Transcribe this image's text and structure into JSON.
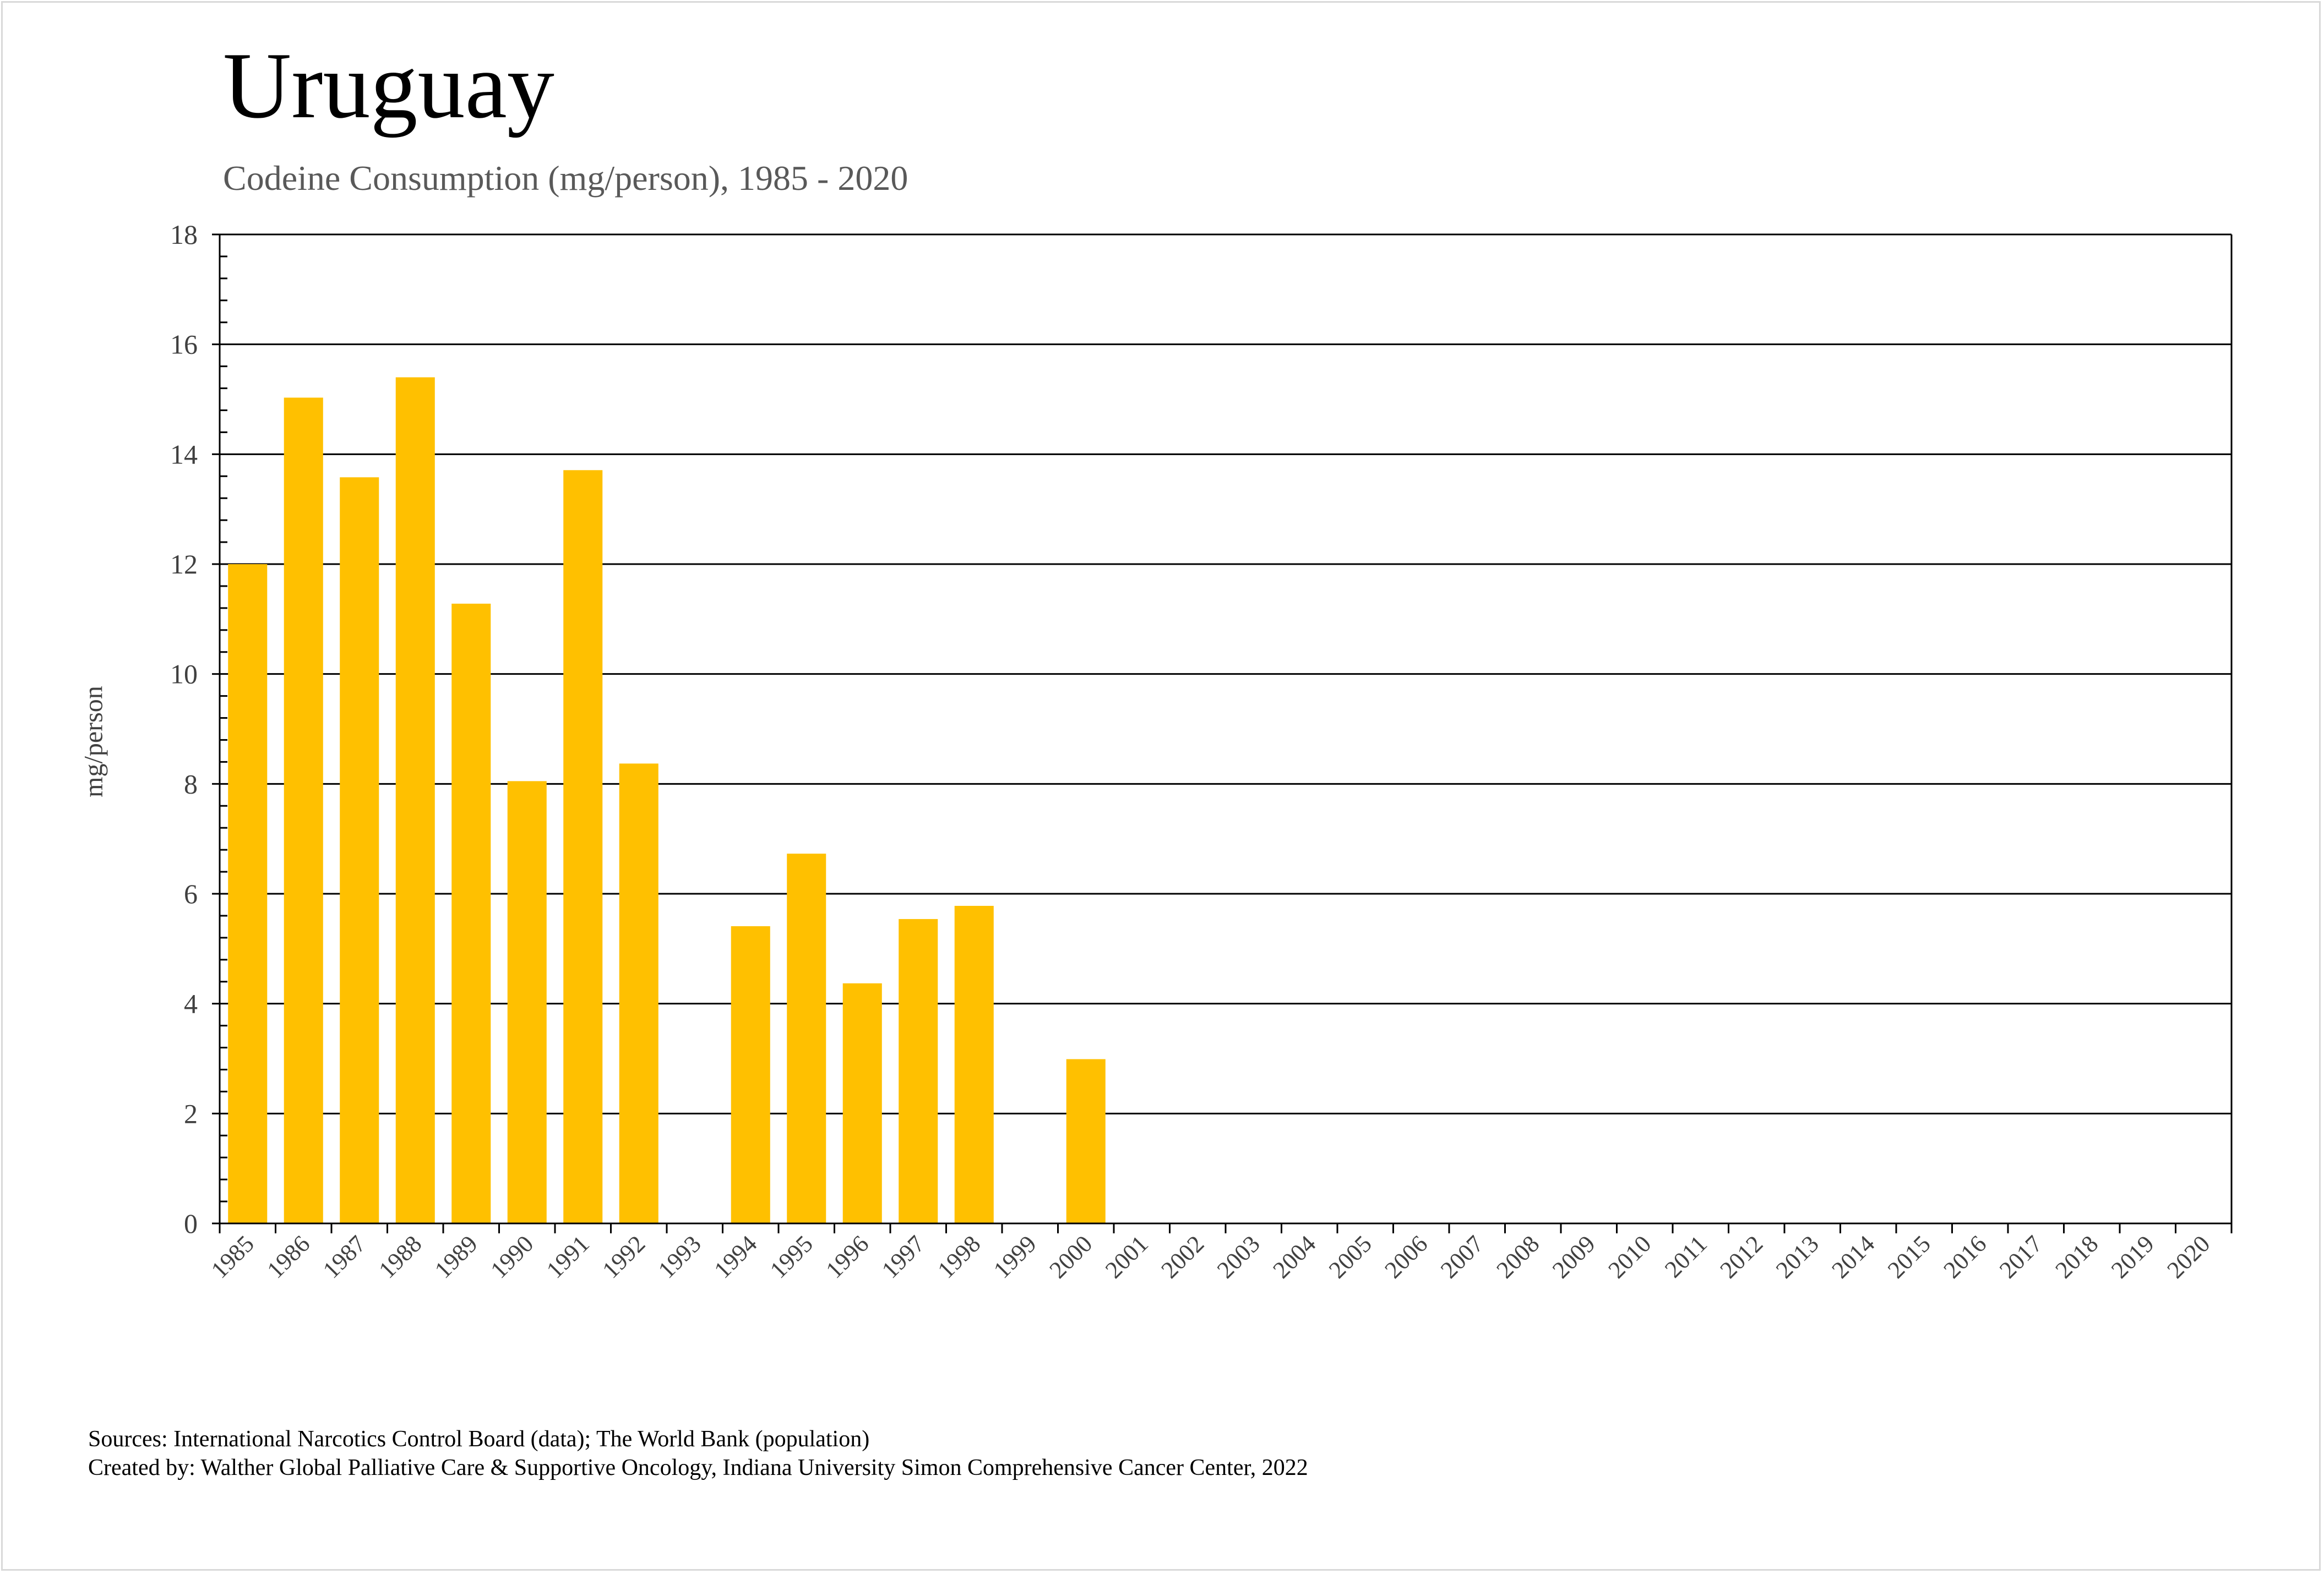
{
  "chart_data": {
    "type": "bar",
    "title": "Uruguay",
    "subtitle": "Codeine Consumption (mg/person), 1985 - 2020",
    "xlabel": "",
    "ylabel": "mg/person",
    "ylim": [
      0,
      18
    ],
    "yticks": [
      0,
      2,
      4,
      6,
      8,
      10,
      12,
      14,
      16,
      18
    ],
    "grid": true,
    "bar_color": "#FFC000",
    "categories": [
      "1985",
      "1986",
      "1987",
      "1988",
      "1989",
      "1990",
      "1991",
      "1992",
      "1993",
      "1994",
      "1995",
      "1996",
      "1997",
      "1998",
      "1999",
      "2000",
      "2001",
      "2002",
      "2003",
      "2004",
      "2005",
      "2006",
      "2007",
      "2008",
      "2009",
      "2010",
      "2011",
      "2012",
      "2013",
      "2014",
      "2015",
      "2016",
      "2017",
      "2018",
      "2019",
      "2020"
    ],
    "values": [
      12.0,
      15.03,
      13.58,
      15.4,
      11.28,
      8.05,
      13.71,
      8.37,
      null,
      5.41,
      6.73,
      4.37,
      5.54,
      5.78,
      null,
      2.99,
      null,
      null,
      null,
      null,
      null,
      null,
      null,
      null,
      null,
      null,
      null,
      null,
      null,
      null,
      null,
      null,
      null,
      null,
      null,
      null
    ]
  },
  "footer": {
    "sources": "Sources: International Narcotics Control Board (data); The World Bank (population)",
    "created_by": "Created by: Walther Global Palliative Care & Supportive Oncology, Indiana University Simon Comprehensive Cancer Center, 2022"
  }
}
